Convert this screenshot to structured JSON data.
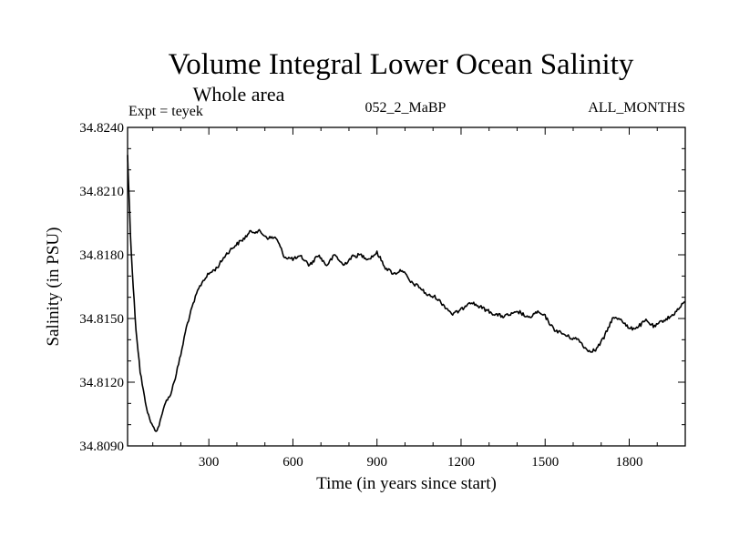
{
  "chart_data": {
    "type": "line",
    "title": "Volume Integral Lower Ocean Salinity",
    "subtitle": "Whole area",
    "expt_label": "Expt = teyek",
    "run_label": "052_2_MaBP",
    "period_label": "ALL_MONTHS",
    "xlabel": "Time (in years since start)",
    "ylabel": "Salinity (in PSU)",
    "xlim": [
      10,
      2000
    ],
    "ylim": [
      34.809,
      34.824
    ],
    "x_ticks": [
      300,
      600,
      900,
      1200,
      1500,
      1800
    ],
    "x_tick_labels": [
      "300",
      "600",
      "900",
      "1200",
      "1500",
      "1800"
    ],
    "y_ticks": [
      34.809,
      34.812,
      34.815,
      34.818,
      34.821,
      34.824
    ],
    "y_tick_labels": [
      "34.8090",
      "34.8120",
      "34.8150",
      "34.8180",
      "34.8210",
      "34.8240"
    ],
    "grid": false,
    "series": [
      {
        "name": "Salinity",
        "color": "#000000",
        "x": [
          10,
          20,
          30,
          40,
          55,
          70,
          85,
          100,
          115,
          130,
          145,
          160,
          180,
          200,
          220,
          240,
          260,
          280,
          300,
          330,
          360,
          390,
          420,
          450,
          480,
          510,
          540,
          570,
          600,
          630,
          660,
          690,
          720,
          750,
          780,
          810,
          840,
          870,
          900,
          930,
          960,
          990,
          1020,
          1050,
          1080,
          1110,
          1140,
          1170,
          1200,
          1230,
          1260,
          1290,
          1320,
          1350,
          1380,
          1410,
          1440,
          1470,
          1500,
          1530,
          1560,
          1590,
          1620,
          1650,
          1680,
          1710,
          1740,
          1770,
          1800,
          1830,
          1860,
          1890,
          1920,
          1950,
          1980,
          2000
        ],
        "values": [
          34.8227,
          34.819,
          34.8165,
          34.8145,
          34.8125,
          34.8113,
          34.8104,
          34.8099,
          34.8097,
          34.8103,
          34.8111,
          34.8113,
          34.8122,
          34.8133,
          34.8146,
          34.8155,
          34.8163,
          34.8168,
          34.8171,
          34.8174,
          34.818,
          34.8184,
          34.8187,
          34.8191,
          34.8191,
          34.8188,
          34.8188,
          34.8179,
          34.8178,
          34.8179,
          34.8175,
          34.818,
          34.8175,
          34.818,
          34.8175,
          34.8179,
          34.818,
          34.8178,
          34.8181,
          34.8174,
          34.8171,
          34.8173,
          34.8167,
          34.8165,
          34.8161,
          34.816,
          34.8156,
          34.8152,
          34.8154,
          34.8158,
          34.8156,
          34.8154,
          34.8152,
          34.8151,
          34.8152,
          34.8153,
          34.815,
          34.8153,
          34.8151,
          34.8145,
          34.8143,
          34.8141,
          34.814,
          34.8135,
          34.8135,
          34.8141,
          34.815,
          34.815,
          34.8145,
          34.8146,
          34.8149,
          34.8146,
          34.8149,
          34.8151,
          34.8155,
          34.8158
        ]
      }
    ]
  }
}
